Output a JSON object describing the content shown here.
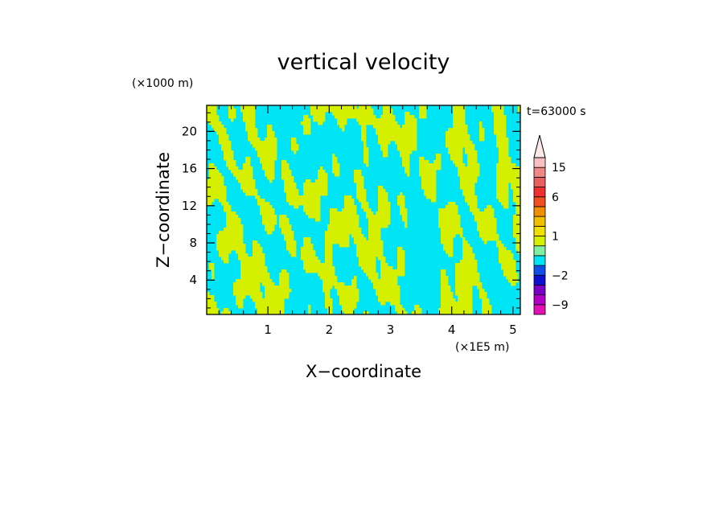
{
  "chart_data": {
    "type": "heatmap",
    "title": "vertical velocity",
    "xlabel": "X−coordinate",
    "ylabel": "Z−coordinate",
    "x_unit": "(×1E5 m)",
    "y_unit": "(×1000 m)",
    "time_label": "t=63000 s",
    "xlim": [
      0,
      5.12
    ],
    "ylim": [
      0.3,
      22.8
    ],
    "x_ticks": [
      1,
      2,
      3,
      4,
      5
    ],
    "y_ticks": [
      4,
      8,
      12,
      16,
      20
    ],
    "x_tick_labels": [
      "1",
      "2",
      "3",
      "4",
      "5"
    ],
    "y_tick_labels": [
      "4",
      "8",
      "12",
      "16",
      "20"
    ],
    "fill_colors": {
      "positive": "#d4f000",
      "negative": "#00e5f5"
    },
    "colorbar": {
      "levels": [
        -12,
        -9,
        -6,
        -4,
        -2,
        -1,
        -0.5,
        0.5,
        1,
        2,
        3,
        4,
        6,
        9,
        12,
        15,
        20
      ],
      "colors": [
        "#e010b4",
        "#b000c8",
        "#7a00c8",
        "#1010d0",
        "#1050e8",
        "#00e5f5",
        "#80f0a0",
        "#d4f000",
        "#f0e000",
        "#f0c000",
        "#f09000",
        "#f05020",
        "#f03030",
        "#e86060",
        "#f08888",
        "#f8c0c0"
      ],
      "tick_values": [
        15,
        6,
        1,
        -2,
        -9
      ],
      "tick_labels": [
        "15",
        "6",
        "1",
        "−2",
        "−9"
      ],
      "extend": "max",
      "extend_color": "#fde8e8"
    }
  }
}
